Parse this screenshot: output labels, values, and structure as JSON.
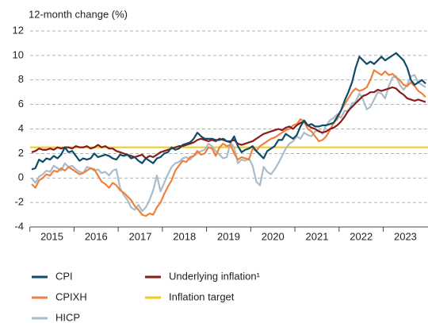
{
  "chart_data": {
    "type": "line",
    "y_label": "12-month change (%)",
    "categories": [
      null,
      null,
      null,
      null,
      null,
      null,
      "2015",
      null,
      null,
      null,
      null,
      null,
      null,
      null,
      null,
      null,
      null,
      null,
      "2016",
      null,
      null,
      null,
      null,
      null,
      null,
      null,
      null,
      null,
      null,
      null,
      "2017",
      null,
      null,
      null,
      null,
      null,
      null,
      null,
      null,
      null,
      null,
      null,
      "2018",
      null,
      null,
      null,
      null,
      null,
      null,
      null,
      null,
      null,
      null,
      null,
      "2019",
      null,
      null,
      null,
      null,
      null,
      null,
      null,
      null,
      null,
      null,
      null,
      "2020",
      null,
      null,
      null,
      null,
      null,
      null,
      null,
      null,
      null,
      null,
      null,
      "2021",
      null,
      null,
      null,
      null,
      null,
      null,
      null,
      null,
      null,
      null,
      null,
      "2022",
      null,
      null,
      null,
      null,
      null,
      null,
      null,
      null,
      null,
      null,
      null,
      "2023",
      null,
      null,
      null,
      null,
      null
    ],
    "series": [
      {
        "name": "CPI",
        "color": "#0e4c67",
        "values": [
          0.7,
          0.8,
          1.5,
          1.3,
          1.6,
          1.5,
          1.8,
          1.6,
          1.9,
          2.5,
          2.1,
          2.2,
          1.8,
          1.4,
          1.6,
          1.5,
          1.6,
          2.0,
          1.7,
          1.8,
          1.9,
          1.8,
          1.6,
          1.5,
          1.9,
          1.8,
          1.9,
          1.6,
          1.7,
          1.4,
          1.2,
          1.6,
          1.4,
          1.2,
          1.6,
          1.7,
          2.0,
          2.1,
          2.5,
          2.3,
          2.4,
          2.7,
          2.8,
          2.9,
          3.2,
          3.7,
          3.4,
          3.2,
          3.2,
          3.2,
          3.1,
          3.1,
          3.2,
          3.0,
          2.9,
          3.4,
          2.6,
          2.1,
          2.3,
          2.4,
          2.6,
          2.2,
          1.9,
          1.6,
          2.2,
          2.4,
          2.6,
          3.1,
          3.1,
          3.6,
          3.4,
          3.2,
          3.5,
          4.2,
          4.7,
          4.3,
          4.4,
          4.2,
          4.2,
          4.3,
          4.3,
          4.4,
          4.5,
          5.0,
          5.5,
          6.3,
          7.0,
          7.8,
          9.0,
          9.9,
          9.6,
          9.3,
          9.5,
          9.3,
          9.6,
          9.9,
          9.6,
          9.8,
          10.0,
          10.2,
          9.9,
          9.6,
          9.0,
          8.0,
          7.6,
          7.8,
          8.0,
          7.7
        ]
      },
      {
        "name": "Underlying inflation¹",
        "color": "#8b1a1a",
        "values": [
          2.1,
          2.2,
          2.4,
          2.3,
          2.3,
          2.4,
          2.3,
          2.5,
          2.4,
          2.5,
          2.5,
          2.4,
          2.6,
          2.5,
          2.5,
          2.6,
          2.4,
          2.5,
          2.7,
          2.5,
          2.6,
          2.4,
          2.4,
          2.2,
          2.1,
          2.0,
          1.9,
          1.8,
          1.7,
          1.8,
          1.9,
          1.6,
          1.8,
          1.7,
          1.9,
          2.1,
          2.2,
          2.3,
          2.4,
          2.5,
          2.6,
          2.6,
          2.7,
          2.8,
          2.9,
          3.1,
          3.2,
          3.1,
          3.0,
          3.1,
          3.0,
          3.2,
          3.1,
          3.0,
          3.0,
          3.1,
          2.8,
          2.7,
          2.8,
          2.9,
          3.0,
          3.2,
          3.4,
          3.6,
          3.7,
          3.8,
          3.9,
          4.0,
          3.9,
          4.1,
          4.2,
          4.0,
          4.3,
          4.5,
          4.6,
          4.3,
          4.1,
          4.0,
          3.8,
          3.7,
          3.8,
          4.0,
          4.1,
          4.3,
          4.6,
          5.0,
          5.5,
          5.8,
          6.1,
          6.4,
          6.7,
          6.8,
          7.0,
          7.0,
          7.2,
          7.1,
          7.2,
          7.3,
          7.4,
          7.3,
          7.0,
          6.8,
          6.5,
          6.4,
          6.3,
          6.4,
          6.3,
          6.2
        ]
      },
      {
        "name": "CPIXH",
        "color": "#f0803c",
        "values": [
          -0.5,
          -0.8,
          -0.2,
          0.0,
          0.3,
          0.2,
          0.6,
          0.5,
          0.8,
          0.6,
          0.9,
          0.7,
          0.5,
          0.3,
          0.4,
          0.6,
          0.8,
          0.7,
          0.2,
          -0.3,
          -0.5,
          -0.8,
          -0.4,
          -0.6,
          -1.0,
          -1.2,
          -1.5,
          -1.8,
          -2.3,
          -2.6,
          -3.0,
          -3.1,
          -2.9,
          -3.0,
          -2.4,
          -2.0,
          -1.3,
          -0.7,
          -0.2,
          0.6,
          1.0,
          1.4,
          1.3,
          1.7,
          1.8,
          2.2,
          1.9,
          2.0,
          2.5,
          2.4,
          1.8,
          2.5,
          2.8,
          2.6,
          2.7,
          2.0,
          1.5,
          1.7,
          1.6,
          1.5,
          2.4,
          2.2,
          2.6,
          2.8,
          3.0,
          3.2,
          3.3,
          3.5,
          3.7,
          3.9,
          4.0,
          4.3,
          4.4,
          4.8,
          4.6,
          4.0,
          3.8,
          3.4,
          3.0,
          3.1,
          3.4,
          3.9,
          4.5,
          4.8,
          5.5,
          6.0,
          6.5,
          7.0,
          7.3,
          7.1,
          7.2,
          7.4,
          8.0,
          8.8,
          8.6,
          8.4,
          8.7,
          8.4,
          8.5,
          8.2,
          8.0,
          7.6,
          7.5,
          7.8,
          7.5,
          7.1,
          6.9,
          6.6
        ]
      },
      {
        "name": "HICP",
        "color": "#a9bccb",
        "values": [
          0.0,
          -0.4,
          0.1,
          0.3,
          0.6,
          0.5,
          1.0,
          0.8,
          0.6,
          1.2,
          0.9,
          1.0,
          0.7,
          0.5,
          0.4,
          0.9,
          0.8,
          0.6,
          0.7,
          0.4,
          0.5,
          0.2,
          0.6,
          0.7,
          -0.8,
          -1.4,
          -1.8,
          -2.4,
          -2.6,
          -2.2,
          -2.7,
          -2.4,
          -1.8,
          -1.0,
          0.2,
          -1.1,
          -0.4,
          0.3,
          0.9,
          1.2,
          1.3,
          1.6,
          1.7,
          1.5,
          1.8,
          2.0,
          2.2,
          2.3,
          2.8,
          2.6,
          2.2,
          1.9,
          1.6,
          1.7,
          2.9,
          2.5,
          1.2,
          1.5,
          1.4,
          1.6,
          1.0,
          -0.3,
          -0.6,
          0.9,
          0.5,
          0.3,
          0.7,
          1.2,
          1.8,
          2.4,
          2.8,
          3.0,
          3.4,
          3.2,
          3.7,
          3.5,
          3.4,
          3.8,
          3.9,
          3.6,
          4.3,
          4.7,
          4.9,
          5.2,
          4.9,
          5.5,
          5.4,
          6.1,
          6.2,
          6.9,
          6.4,
          5.6,
          5.8,
          6.4,
          7.0,
          6.9,
          6.5,
          7.5,
          8.2,
          8.3,
          7.6,
          7.2,
          7.6,
          8.3,
          8.4,
          7.8,
          7.6,
          7.4
        ]
      }
    ],
    "target": {
      "name": "Inflation target",
      "value": 2.5,
      "color": "#f2c919"
    },
    "ylim": [
      -4,
      12
    ],
    "yticks": [
      12,
      10,
      8,
      6,
      4,
      2,
      0,
      -2,
      -4
    ],
    "grid": true
  }
}
